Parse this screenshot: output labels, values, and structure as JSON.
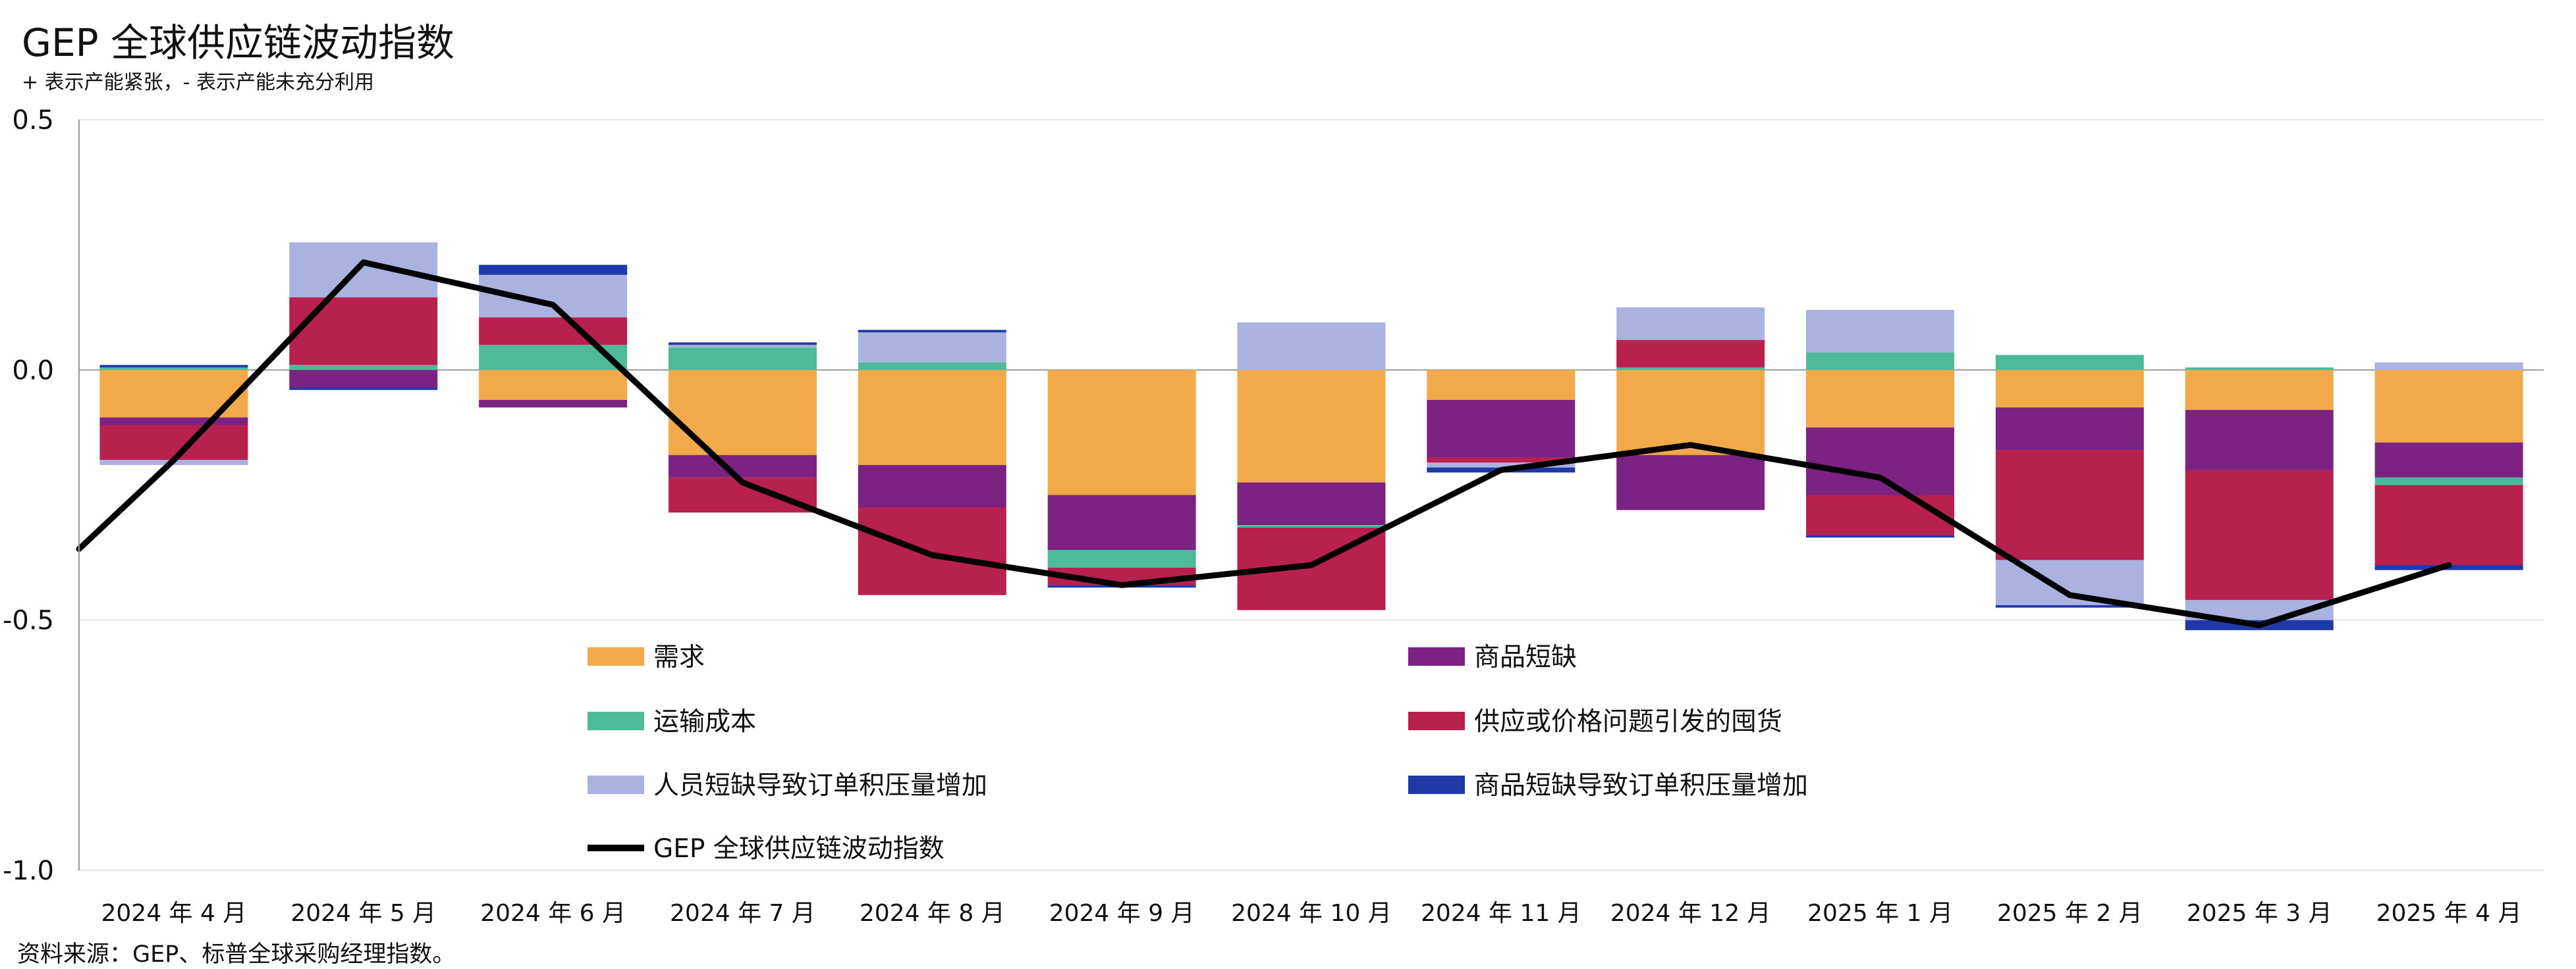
{
  "title": "GEP 全球供应链波动指数",
  "subtitle": "+ 表示产能紧张，- 表示产能未充分利用",
  "source": "资料来源：GEP、标普全球采购经理指数。",
  "chart_data": {
    "type": "bar",
    "stacked": true,
    "grid": true,
    "ylim": [
      -1.0,
      0.5
    ],
    "yticks": [
      0.5,
      0.0,
      -0.5,
      -1.0
    ],
    "ytick_labels": [
      "0.5",
      "0.0",
      "-0.5",
      "-1.0"
    ],
    "categories": [
      "2024 年 4 月",
      "2024 年 5 月",
      "2024 年 6 月",
      "2024 年 7 月",
      "2024 年 8 月",
      "2024 年 9 月",
      "2024 年 10 月",
      "2024 年 11 月",
      "2024 年 12 月",
      "2025 年 1 月",
      "2025 年 2 月",
      "2025 年 3 月",
      "2025 年 4 月"
    ],
    "series": [
      {
        "name": "需求",
        "color": "#F2A94A",
        "values": [
          -0.095,
          0.0,
          -0.06,
          -0.17,
          -0.19,
          -0.25,
          -0.225,
          -0.06,
          -0.17,
          -0.115,
          -0.075,
          -0.08,
          -0.145
        ]
      },
      {
        "name": "商品短缺",
        "color": "#7B2282",
        "values": [
          -0.015,
          -0.035,
          -0.015,
          -0.045,
          -0.085,
          -0.11,
          -0.085,
          -0.115,
          -0.11,
          -0.135,
          -0.085,
          -0.12,
          -0.07
        ]
      },
      {
        "name": "运输成本",
        "color": "#4DBA9A",
        "values": [
          0.005,
          0.01,
          0.05,
          0.045,
          0.015,
          -0.035,
          -0.005,
          0.0,
          0.005,
          0.035,
          0.03,
          0.005,
          -0.015
        ]
      },
      {
        "name": "供应或价格问题引发的囤货",
        "color": "#B8214E",
        "values": [
          -0.07,
          0.135,
          0.055,
          -0.07,
          -0.175,
          -0.035,
          -0.165,
          -0.01,
          0.055,
          -0.08,
          -0.22,
          -0.26,
          -0.16
        ]
      },
      {
        "name": "人员短缺导致订单积压量增加",
        "color": "#AAB3E0",
        "values": [
          -0.01,
          0.11,
          0.085,
          0.005,
          0.06,
          0.0,
          0.095,
          -0.01,
          0.065,
          0.085,
          -0.09,
          -0.04,
          0.015
        ]
      },
      {
        "name": "商品短缺导致订单积压量增加",
        "color": "#1F39A8",
        "values": [
          0.005,
          -0.005,
          0.02,
          0.005,
          0.005,
          -0.005,
          0.0,
          -0.01,
          0.0,
          -0.005,
          -0.005,
          -0.02,
          -0.01
        ]
      }
    ],
    "line": {
      "name": "GEP 全球供应链波动指数",
      "color": "#000000",
      "values": [
        -0.18,
        0.215,
        0.13,
        -0.225,
        -0.37,
        -0.43,
        -0.39,
        -0.2,
        -0.15,
        -0.215,
        -0.45,
        -0.51,
        -0.39
      ]
    },
    "legend_position": "bottom-center, inside plot"
  }
}
